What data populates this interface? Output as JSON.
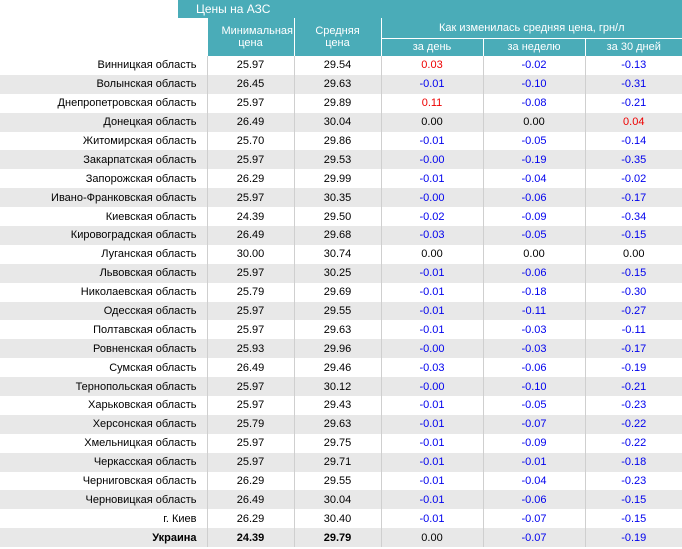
{
  "header": {
    "title": "Цены на АЗС"
  },
  "table": {
    "columns": [
      "Минимальная цена",
      "Средняя цена"
    ],
    "group": "Как изменилась средняя цена, грн/л",
    "subcolumns": [
      "за день",
      "за неделю",
      "за 30 дней"
    ],
    "colors": {
      "negative": "#0000ee",
      "positive": "#ee0000",
      "zero": "#000000"
    },
    "total_row": 25,
    "rows": [
      [
        "Винницкая область",
        "25.97",
        "29.54",
        "0.03",
        "-0.02",
        "-0.13"
      ],
      [
        "Волынская область",
        "26.45",
        "29.63",
        "-0.01",
        "-0.10",
        "-0.31"
      ],
      [
        "Днепропетровская область",
        "25.97",
        "29.89",
        "0.11",
        "-0.08",
        "-0.21"
      ],
      [
        "Донецкая область",
        "26.49",
        "30.04",
        "0.00",
        "0.00",
        "0.04"
      ],
      [
        "Житомирская область",
        "25.70",
        "29.86",
        "-0.01",
        "-0.05",
        "-0.14"
      ],
      [
        "Закарпатская область",
        "25.97",
        "29.53",
        "-0.00",
        "-0.19",
        "-0.35"
      ],
      [
        "Запорожская область",
        "26.29",
        "29.99",
        "-0.01",
        "-0.04",
        "-0.02"
      ],
      [
        "Ивано-Франковская область",
        "25.97",
        "30.35",
        "-0.00",
        "-0.06",
        "-0.17"
      ],
      [
        "Киевская область",
        "24.39",
        "29.50",
        "-0.02",
        "-0.09",
        "-0.34"
      ],
      [
        "Кировоградская область",
        "26.49",
        "29.68",
        "-0.03",
        "-0.05",
        "-0.15"
      ],
      [
        "Луганская область",
        "30.00",
        "30.74",
        "0.00",
        "0.00",
        "0.00"
      ],
      [
        "Львовская область",
        "25.97",
        "30.25",
        "-0.01",
        "-0.06",
        "-0.15"
      ],
      [
        "Николаевская область",
        "25.79",
        "29.69",
        "-0.01",
        "-0.18",
        "-0.30"
      ],
      [
        "Одесская область",
        "25.97",
        "29.55",
        "-0.01",
        "-0.11",
        "-0.27"
      ],
      [
        "Полтавская область",
        "25.97",
        "29.63",
        "-0.01",
        "-0.03",
        "-0.11"
      ],
      [
        "Ровненская область",
        "25.93",
        "29.96",
        "-0.00",
        "-0.03",
        "-0.17"
      ],
      [
        "Сумская область",
        "26.49",
        "29.46",
        "-0.03",
        "-0.06",
        "-0.19"
      ],
      [
        "Тернопольская область",
        "25.97",
        "30.12",
        "-0.00",
        "-0.10",
        "-0.21"
      ],
      [
        "Харьковская область",
        "25.97",
        "29.43",
        "-0.01",
        "-0.05",
        "-0.23"
      ],
      [
        "Херсонская область",
        "25.79",
        "29.63",
        "-0.01",
        "-0.07",
        "-0.22"
      ],
      [
        "Хмельницкая область",
        "25.97",
        "29.75",
        "-0.01",
        "-0.09",
        "-0.22"
      ],
      [
        "Черкасская область",
        "25.97",
        "29.71",
        "-0.01",
        "-0.01",
        "-0.18"
      ],
      [
        "Черниговская область",
        "26.29",
        "29.55",
        "-0.01",
        "-0.04",
        "-0.23"
      ],
      [
        "Черновицкая область",
        "26.49",
        "30.04",
        "-0.01",
        "-0.06",
        "-0.15"
      ],
      [
        "г. Киев",
        "26.29",
        "30.40",
        "-0.01",
        "-0.07",
        "-0.15"
      ],
      [
        "Украина",
        "24.39",
        "29.79",
        "0.00",
        "-0.07",
        "-0.19"
      ]
    ]
  }
}
